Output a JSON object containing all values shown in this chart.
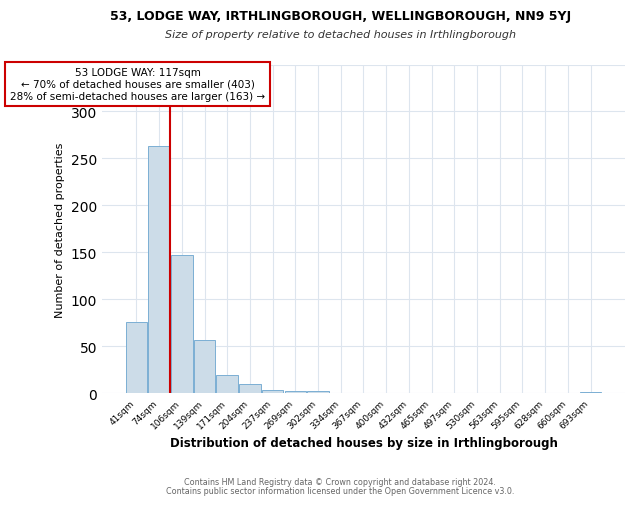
{
  "title": "53, LODGE WAY, IRTHLINGBOROUGH, WELLINGBOROUGH, NN9 5YJ",
  "subtitle": "Size of property relative to detached houses in Irthlingborough",
  "xlabel": "Distribution of detached houses by size in Irthlingborough",
  "ylabel": "Number of detached properties",
  "bar_labels": [
    "41sqm",
    "74sqm",
    "106sqm",
    "139sqm",
    "171sqm",
    "204sqm",
    "237sqm",
    "269sqm",
    "302sqm",
    "334sqm",
    "367sqm",
    "400sqm",
    "432sqm",
    "465sqm",
    "497sqm",
    "530sqm",
    "563sqm",
    "595sqm",
    "628sqm",
    "660sqm",
    "693sqm"
  ],
  "bar_values": [
    76,
    263,
    147,
    57,
    20,
    10,
    4,
    3,
    3,
    0,
    0,
    0,
    0,
    0,
    0,
    0,
    0,
    0,
    0,
    0,
    2
  ],
  "bar_color": "#ccdce8",
  "bar_edgecolor": "#7bafd4",
  "ylim": [
    0,
    350
  ],
  "yticks": [
    0,
    50,
    100,
    150,
    200,
    250,
    300,
    350
  ],
  "property_line_color": "#cc0000",
  "annotation_title": "53 LODGE WAY: 117sqm",
  "annotation_line1": "← 70% of detached houses are smaller (403)",
  "annotation_line2": "28% of semi-detached houses are larger (163) →",
  "annotation_box_edgecolor": "#cc0000",
  "footnote1": "Contains HM Land Registry data © Crown copyright and database right 2024.",
  "footnote2": "Contains public sector information licensed under the Open Government Licence v3.0.",
  "background_color": "#ffffff",
  "plot_background": "#ffffff",
  "grid_color": "#dde5ee"
}
